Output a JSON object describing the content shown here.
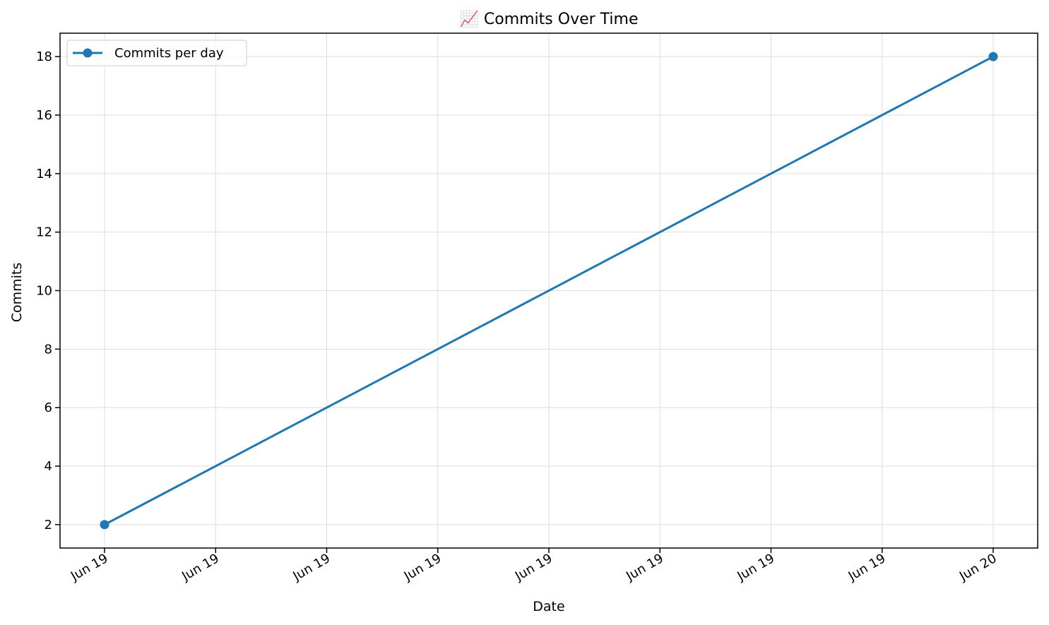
{
  "chart_data": {
    "type": "line",
    "title": "📈 Commits Over Time",
    "xlabel": "Date",
    "ylabel": "Commits",
    "x": [
      "Jun 19",
      "Jun 20"
    ],
    "x_tick_labels": [
      "Jun 19",
      "Jun 19",
      "Jun 19",
      "Jun 19",
      "Jun 19",
      "Jun 19",
      "Jun 19",
      "Jun 19",
      "Jun 20"
    ],
    "y_ticks": [
      2,
      4,
      6,
      8,
      10,
      12,
      14,
      16,
      18
    ],
    "ylim": [
      1.2,
      18.8
    ],
    "grid": true,
    "legend_position": "top-left",
    "series": [
      {
        "name": "Commits per day",
        "values": [
          2,
          18
        ],
        "color": "#1f77b4"
      }
    ]
  }
}
